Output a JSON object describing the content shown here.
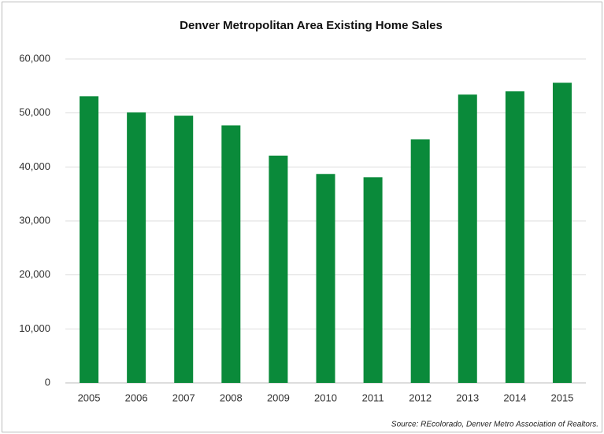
{
  "chart_data": {
    "type": "bar",
    "title": "Denver Metropolitan Area Existing Home Sales",
    "source": "Source: REcolorado, Denver Metro Association of Realtors.",
    "categories": [
      "2005",
      "2006",
      "2007",
      "2008",
      "2009",
      "2010",
      "2011",
      "2012",
      "2013",
      "2014",
      "2015"
    ],
    "values": [
      53100,
      50100,
      49500,
      47700,
      42100,
      38700,
      38100,
      45100,
      53400,
      54000,
      55600
    ],
    "color": "#0a8a3a",
    "ylim": [
      0,
      60000
    ],
    "yticks": [
      0,
      {
        "value": 10000,
        "label": "10,000"
      },
      {
        "value": 20000,
        "label": "20,000"
      },
      {
        "value": 30000,
        "label": "30,000"
      },
      {
        "value": 40000,
        "label": "40,000"
      },
      {
        "value": 50000,
        "label": "50,000"
      },
      {
        "value": 60000,
        "label": "60,000"
      }
    ],
    "grid": true
  }
}
